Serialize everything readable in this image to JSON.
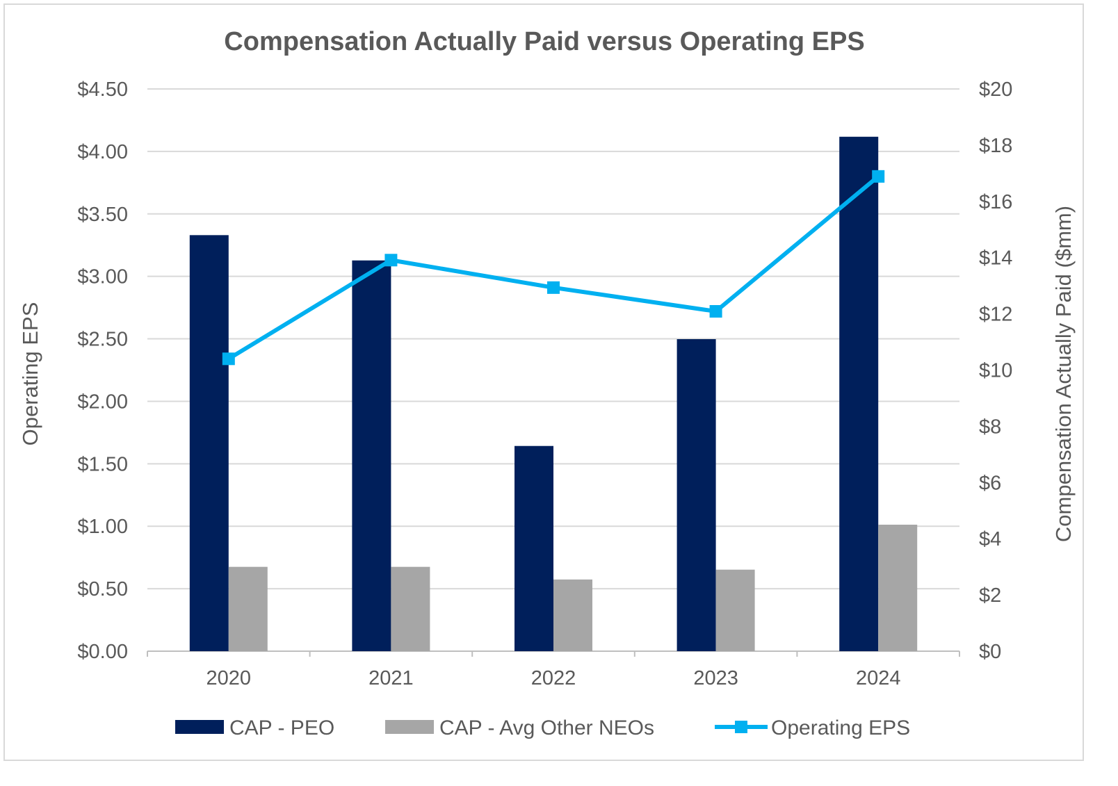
{
  "chart_data": {
    "type": "bar+line",
    "title": "Compensation Actually Paid versus Operating EPS",
    "categories": [
      "2020",
      "2021",
      "2022",
      "2023",
      "2024"
    ],
    "y_left": {
      "label": "Operating EPS",
      "range": [
        0,
        4.5
      ],
      "ticks": [
        "$0.00",
        "$0.50",
        "$1.00",
        "$1.50",
        "$2.00",
        "$2.50",
        "$3.00",
        "$3.50",
        "$4.00",
        "$4.50"
      ]
    },
    "y_right": {
      "label": "Compensation Actually Paid ($mm)",
      "range": [
        0,
        20
      ],
      "ticks": [
        "$0",
        "$2",
        "$4",
        "$6",
        "$8",
        "$10",
        "$12",
        "$14",
        "$16",
        "$18",
        "$20"
      ]
    },
    "grid": true,
    "legend_position": "bottom",
    "series": [
      {
        "name": "CAP - PEO",
        "type": "bar",
        "axis": "right",
        "color": "#001f5b",
        "values": [
          14.8,
          13.9,
          7.3,
          11.1,
          18.3
        ]
      },
      {
        "name": "CAP - Avg Other NEOs",
        "type": "bar",
        "axis": "right",
        "color": "#a6a6a6",
        "values": [
          3.0,
          3.0,
          2.55,
          2.9,
          4.5
        ]
      },
      {
        "name": "Operating EPS",
        "type": "line",
        "axis": "left",
        "color": "#00b0f0",
        "marker": "square",
        "values": [
          2.34,
          3.13,
          2.91,
          2.72,
          3.8
        ]
      }
    ]
  }
}
